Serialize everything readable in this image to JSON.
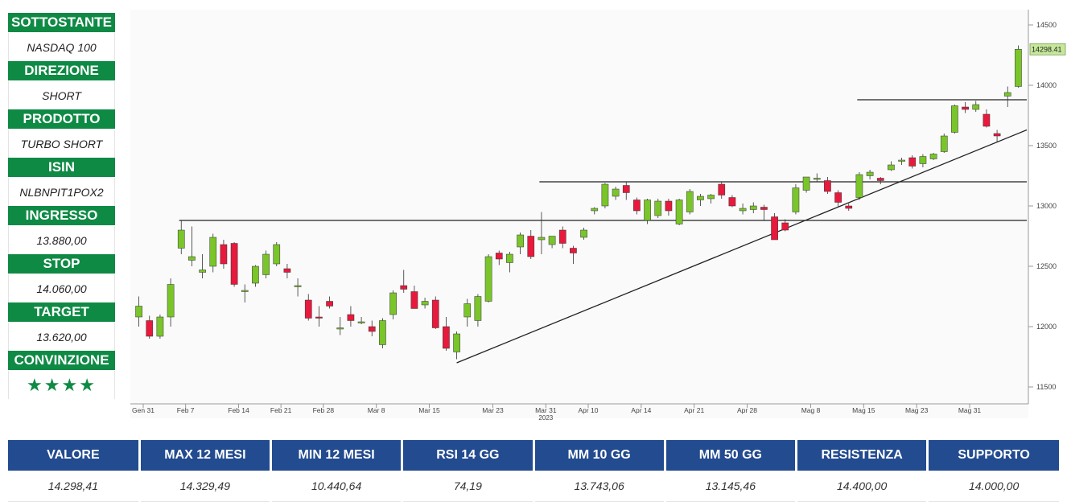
{
  "info_panel": {
    "rows": [
      {
        "label": "SOTTOSTANTE",
        "value": "NASDAQ 100"
      },
      {
        "label": "DIREZIONE",
        "value": "SHORT"
      },
      {
        "label": "PRODOTTO",
        "value": "TURBO SHORT"
      },
      {
        "label": "ISIN",
        "value": "NLBNPIT1POX2"
      },
      {
        "label": "INGRESSO",
        "value": "13.880,00"
      },
      {
        "label": "STOP",
        "value": "14.060,00"
      },
      {
        "label": "TARGET",
        "value": "13.620,00"
      },
      {
        "label": "CONVINZIONE",
        "value": "★★★★"
      }
    ]
  },
  "stats_table": {
    "headers": [
      "VALORE",
      "MAX 12 MESI",
      "MIN 12 MESI",
      "RSI 14 GG",
      "MM 10 GG",
      "MM 50 GG",
      "RESISTENZA",
      "SUPPORTO"
    ],
    "values": [
      "14.298,41",
      "14.329,49",
      "10.440,64",
      "74,19",
      "13.743,06",
      "13.145,46",
      "14.400,00",
      "14.000,00"
    ]
  },
  "colors": {
    "label_green": "#0f8a45",
    "header_blue": "#234b8f",
    "candle_up": "#7ac52a",
    "candle_down": "#e8193c",
    "last_price_bg": "#c6e89a"
  },
  "chart_data": {
    "type": "candlestick",
    "y_ticks": [
      11500,
      12000,
      12500,
      13000,
      13500,
      14000,
      14500
    ],
    "ylim": [
      11440,
      14600
    ],
    "x_ticks": [
      "Gen 31",
      "Feb 7",
      "Feb 14",
      "Feb 21",
      "Feb 28",
      "Mar 8",
      "Mar 15",
      "Mar 23",
      "Mar 31",
      "Apr 10",
      "Apr 14",
      "Apr 21",
      "Apr 28",
      "Mag 8",
      "Mag 15",
      "Mag 23",
      "Mag 31"
    ],
    "x_sublabel": "2023",
    "last_price_label": "14298.41",
    "last_price": 14298.41,
    "horizontal_levels": [
      {
        "value": 12880,
        "from_index": 2,
        "to_index": 45
      },
      {
        "value": 13200,
        "from_index": 21,
        "to_index": 45
      },
      {
        "value": 13880,
        "from_index": 37,
        "to_index": 45
      }
    ],
    "trendline": {
      "from": {
        "index": 13,
        "value": 11700
      },
      "to": {
        "index": 45,
        "value": 13630
      }
    },
    "candles": [
      {
        "o": 12080,
        "h": 12250,
        "l": 12000,
        "c": 12170
      },
      {
        "o": 12050,
        "h": 12090,
        "l": 11900,
        "c": 11920
      },
      {
        "o": 11920,
        "h": 12100,
        "l": 11900,
        "c": 12080
      },
      {
        "o": 12080,
        "h": 12400,
        "l": 12000,
        "c": 12350
      },
      {
        "o": 12650,
        "h": 12880,
        "l": 12600,
        "c": 12800
      },
      {
        "o": 12550,
        "h": 12830,
        "l": 12500,
        "c": 12580
      },
      {
        "o": 12450,
        "h": 12600,
        "l": 12400,
        "c": 12470
      },
      {
        "o": 12500,
        "h": 12770,
        "l": 12450,
        "c": 12740
      },
      {
        "o": 12680,
        "h": 12720,
        "l": 12480,
        "c": 12520
      },
      {
        "o": 12690,
        "h": 12700,
        "l": 12330,
        "c": 12350
      },
      {
        "o": 12300,
        "h": 12350,
        "l": 12200,
        "c": 12300
      },
      {
        "o": 12360,
        "h": 12510,
        "l": 12330,
        "c": 12500
      },
      {
        "o": 12430,
        "h": 12630,
        "l": 12400,
        "c": 12600
      },
      {
        "o": 12520,
        "h": 12700,
        "l": 12500,
        "c": 12680
      },
      {
        "o": 12480,
        "h": 12520,
        "l": 12400,
        "c": 12450
      },
      {
        "o": 12340,
        "h": 12400,
        "l": 12250,
        "c": 12340
      },
      {
        "o": 12220,
        "h": 12270,
        "l": 12050,
        "c": 12070
      },
      {
        "o": 12080,
        "h": 12170,
        "l": 12000,
        "c": 12070
      },
      {
        "o": 12210,
        "h": 12250,
        "l": 12150,
        "c": 12170
      },
      {
        "o": 11990,
        "h": 12080,
        "l": 11930,
        "c": 11990
      },
      {
        "o": 12100,
        "h": 12170,
        "l": 12000,
        "c": 12050
      },
      {
        "o": 12040,
        "h": 12080,
        "l": 12020,
        "c": 12040
      },
      {
        "o": 12000,
        "h": 12050,
        "l": 11920,
        "c": 11960
      },
      {
        "o": 11850,
        "h": 12070,
        "l": 11820,
        "c": 12050
      },
      {
        "o": 12100,
        "h": 12300,
        "l": 12060,
        "c": 12280
      },
      {
        "o": 12340,
        "h": 12470,
        "l": 12280,
        "c": 12310
      },
      {
        "o": 12290,
        "h": 12340,
        "l": 12150,
        "c": 12150
      },
      {
        "o": 12180,
        "h": 12240,
        "l": 12150,
        "c": 12210
      },
      {
        "o": 12220,
        "h": 12250,
        "l": 11980,
        "c": 11990
      },
      {
        "o": 12000,
        "h": 12080,
        "l": 11800,
        "c": 11820
      },
      {
        "o": 11790,
        "h": 11960,
        "l": 11730,
        "c": 11940
      },
      {
        "o": 12080,
        "h": 12230,
        "l": 12000,
        "c": 12190
      },
      {
        "o": 12050,
        "h": 12270,
        "l": 12000,
        "c": 12250
      },
      {
        "o": 12210,
        "h": 12600,
        "l": 12200,
        "c": 12580
      },
      {
        "o": 12610,
        "h": 12630,
        "l": 12510,
        "c": 12560
      },
      {
        "o": 12530,
        "h": 12620,
        "l": 12450,
        "c": 12600
      },
      {
        "o": 12660,
        "h": 12780,
        "l": 12600,
        "c": 12760
      },
      {
        "o": 12750,
        "h": 12800,
        "l": 12560,
        "c": 12580
      },
      {
        "o": 12720,
        "h": 12950,
        "l": 12600,
        "c": 12740
      },
      {
        "o": 12680,
        "h": 12750,
        "l": 12650,
        "c": 12750
      },
      {
        "o": 12800,
        "h": 12830,
        "l": 12650,
        "c": 12690
      },
      {
        "o": 12650,
        "h": 12670,
        "l": 12520,
        "c": 12610
      },
      {
        "o": 12740,
        "h": 12820,
        "l": 12720,
        "c": 12800
      },
      {
        "o": 12960,
        "h": 12990,
        "l": 12930,
        "c": 12980
      },
      {
        "o": 13000,
        "h": 13190,
        "l": 12980,
        "c": 13180
      },
      {
        "o": 13080,
        "h": 13160,
        "l": 13050,
        "c": 13140
      },
      {
        "o": 13170,
        "h": 13200,
        "l": 13050,
        "c": 13110
      },
      {
        "o": 13050,
        "h": 13070,
        "l": 12930,
        "c": 12960
      },
      {
        "o": 12880,
        "h": 13060,
        "l": 12850,
        "c": 13050
      },
      {
        "o": 12920,
        "h": 13060,
        "l": 12900,
        "c": 13040
      },
      {
        "o": 13040,
        "h": 13060,
        "l": 12920,
        "c": 12960
      },
      {
        "o": 12850,
        "h": 13060,
        "l": 12840,
        "c": 13050
      },
      {
        "o": 12950,
        "h": 13140,
        "l": 12930,
        "c": 13120
      },
      {
        "o": 13050,
        "h": 13100,
        "l": 13000,
        "c": 13080
      },
      {
        "o": 13060,
        "h": 13100,
        "l": 13020,
        "c": 13090
      },
      {
        "o": 13180,
        "h": 13200,
        "l": 13060,
        "c": 13090
      },
      {
        "o": 13070,
        "h": 13090,
        "l": 12990,
        "c": 13000
      },
      {
        "o": 12960,
        "h": 13020,
        "l": 12930,
        "c": 12980
      },
      {
        "o": 12970,
        "h": 13030,
        "l": 12940,
        "c": 13000
      },
      {
        "o": 12990,
        "h": 13010,
        "l": 12880,
        "c": 12970
      },
      {
        "o": 12910,
        "h": 12940,
        "l": 12720,
        "c": 12720
      },
      {
        "o": 12860,
        "h": 12890,
        "l": 12790,
        "c": 12800
      },
      {
        "o": 12950,
        "h": 13180,
        "l": 12930,
        "c": 13150
      },
      {
        "o": 13130,
        "h": 13240,
        "l": 13110,
        "c": 13240
      },
      {
        "o": 13220,
        "h": 13270,
        "l": 13200,
        "c": 13230
      },
      {
        "o": 13210,
        "h": 13240,
        "l": 13100,
        "c": 13120
      },
      {
        "o": 13110,
        "h": 13130,
        "l": 12990,
        "c": 13030
      },
      {
        "o": 13000,
        "h": 13020,
        "l": 12960,
        "c": 12980
      },
      {
        "o": 13070,
        "h": 13280,
        "l": 13050,
        "c": 13260
      },
      {
        "o": 13250,
        "h": 13300,
        "l": 13220,
        "c": 13280
      },
      {
        "o": 13230,
        "h": 13240,
        "l": 13180,
        "c": 13210
      },
      {
        "o": 13300,
        "h": 13370,
        "l": 13290,
        "c": 13340
      },
      {
        "o": 13370,
        "h": 13400,
        "l": 13340,
        "c": 13380
      },
      {
        "o": 13400,
        "h": 13420,
        "l": 13310,
        "c": 13330
      },
      {
        "o": 13350,
        "h": 13430,
        "l": 13320,
        "c": 13410
      },
      {
        "o": 13390,
        "h": 13440,
        "l": 13380,
        "c": 13430
      },
      {
        "o": 13450,
        "h": 13600,
        "l": 13440,
        "c": 13580
      },
      {
        "o": 13610,
        "h": 13840,
        "l": 13600,
        "c": 13830
      },
      {
        "o": 13820,
        "h": 13860,
        "l": 13770,
        "c": 13800
      },
      {
        "o": 13800,
        "h": 13870,
        "l": 13780,
        "c": 13840
      },
      {
        "o": 13760,
        "h": 13800,
        "l": 13650,
        "c": 13660
      },
      {
        "o": 13600,
        "h": 13630,
        "l": 13530,
        "c": 13580
      },
      {
        "o": 13910,
        "h": 13990,
        "l": 13820,
        "c": 13940
      },
      {
        "o": 13990,
        "h": 14330,
        "l": 13980,
        "c": 14298.41
      }
    ]
  }
}
